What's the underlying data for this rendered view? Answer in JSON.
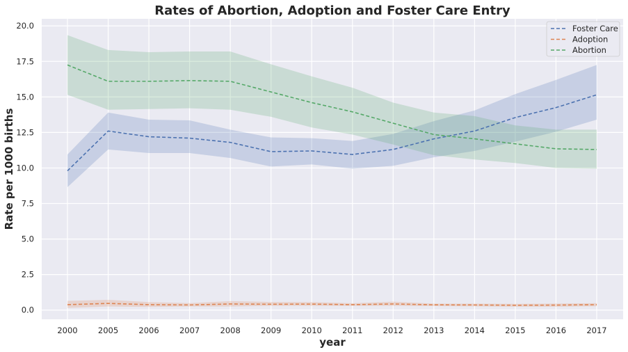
{
  "chart_data": {
    "type": "line",
    "title": "Rates of Abortion, Adoption and Foster Care Entry",
    "xlabel": "year",
    "ylabel": "Rate per 1000 births",
    "categories": [
      "2000",
      "2005",
      "2006",
      "2007",
      "2008",
      "2009",
      "2010",
      "2011",
      "2012",
      "2013",
      "2014",
      "2015",
      "2016",
      "2017"
    ],
    "ylim": [
      -0.65,
      20.5
    ],
    "yticks": [
      "0.0",
      "2.5",
      "5.0",
      "7.5",
      "10.0",
      "12.5",
      "15.0",
      "17.5",
      "20.0"
    ],
    "grid": true,
    "legend_position": "top-right",
    "series": [
      {
        "name": "Foster Care",
        "color": "#4c72b0",
        "values": [
          9.8,
          12.6,
          12.2,
          12.1,
          11.8,
          11.15,
          11.2,
          10.95,
          11.3,
          12.05,
          12.6,
          13.55,
          14.25,
          15.15
        ],
        "lower": [
          8.65,
          11.3,
          11.05,
          11.05,
          10.7,
          10.1,
          10.25,
          9.95,
          10.15,
          10.75,
          11.2,
          11.85,
          12.55,
          13.4
        ],
        "upper": [
          10.95,
          13.9,
          13.4,
          13.35,
          12.7,
          12.15,
          12.1,
          11.9,
          12.4,
          13.3,
          14.05,
          15.2,
          16.2,
          17.25
        ]
      },
      {
        "name": "Adoption",
        "color": "#dd8452",
        "values": [
          0.38,
          0.47,
          0.38,
          0.36,
          0.43,
          0.41,
          0.42,
          0.38,
          0.43,
          0.37,
          0.36,
          0.34,
          0.35,
          0.38
        ],
        "lower": [
          0.15,
          0.25,
          0.22,
          0.25,
          0.25,
          0.3,
          0.3,
          0.3,
          0.3,
          0.28,
          0.26,
          0.24,
          0.24,
          0.27
        ],
        "upper": [
          0.65,
          0.72,
          0.56,
          0.49,
          0.63,
          0.57,
          0.56,
          0.48,
          0.59,
          0.45,
          0.45,
          0.44,
          0.46,
          0.49
        ]
      },
      {
        "name": "Abortion",
        "color": "#55a868",
        "values": [
          17.25,
          16.1,
          16.1,
          16.15,
          16.1,
          15.35,
          14.6,
          13.95,
          13.15,
          12.35,
          12.05,
          11.7,
          11.35,
          11.3
        ],
        "lower": [
          15.15,
          14.1,
          14.15,
          14.2,
          14.1,
          13.6,
          12.85,
          12.35,
          11.65,
          10.9,
          10.6,
          10.35,
          10.0,
          9.95
        ],
        "upper": [
          19.35,
          18.3,
          18.15,
          18.2,
          18.2,
          17.3,
          16.45,
          15.65,
          14.6,
          13.9,
          13.65,
          13.0,
          12.7,
          12.7
        ]
      }
    ]
  }
}
